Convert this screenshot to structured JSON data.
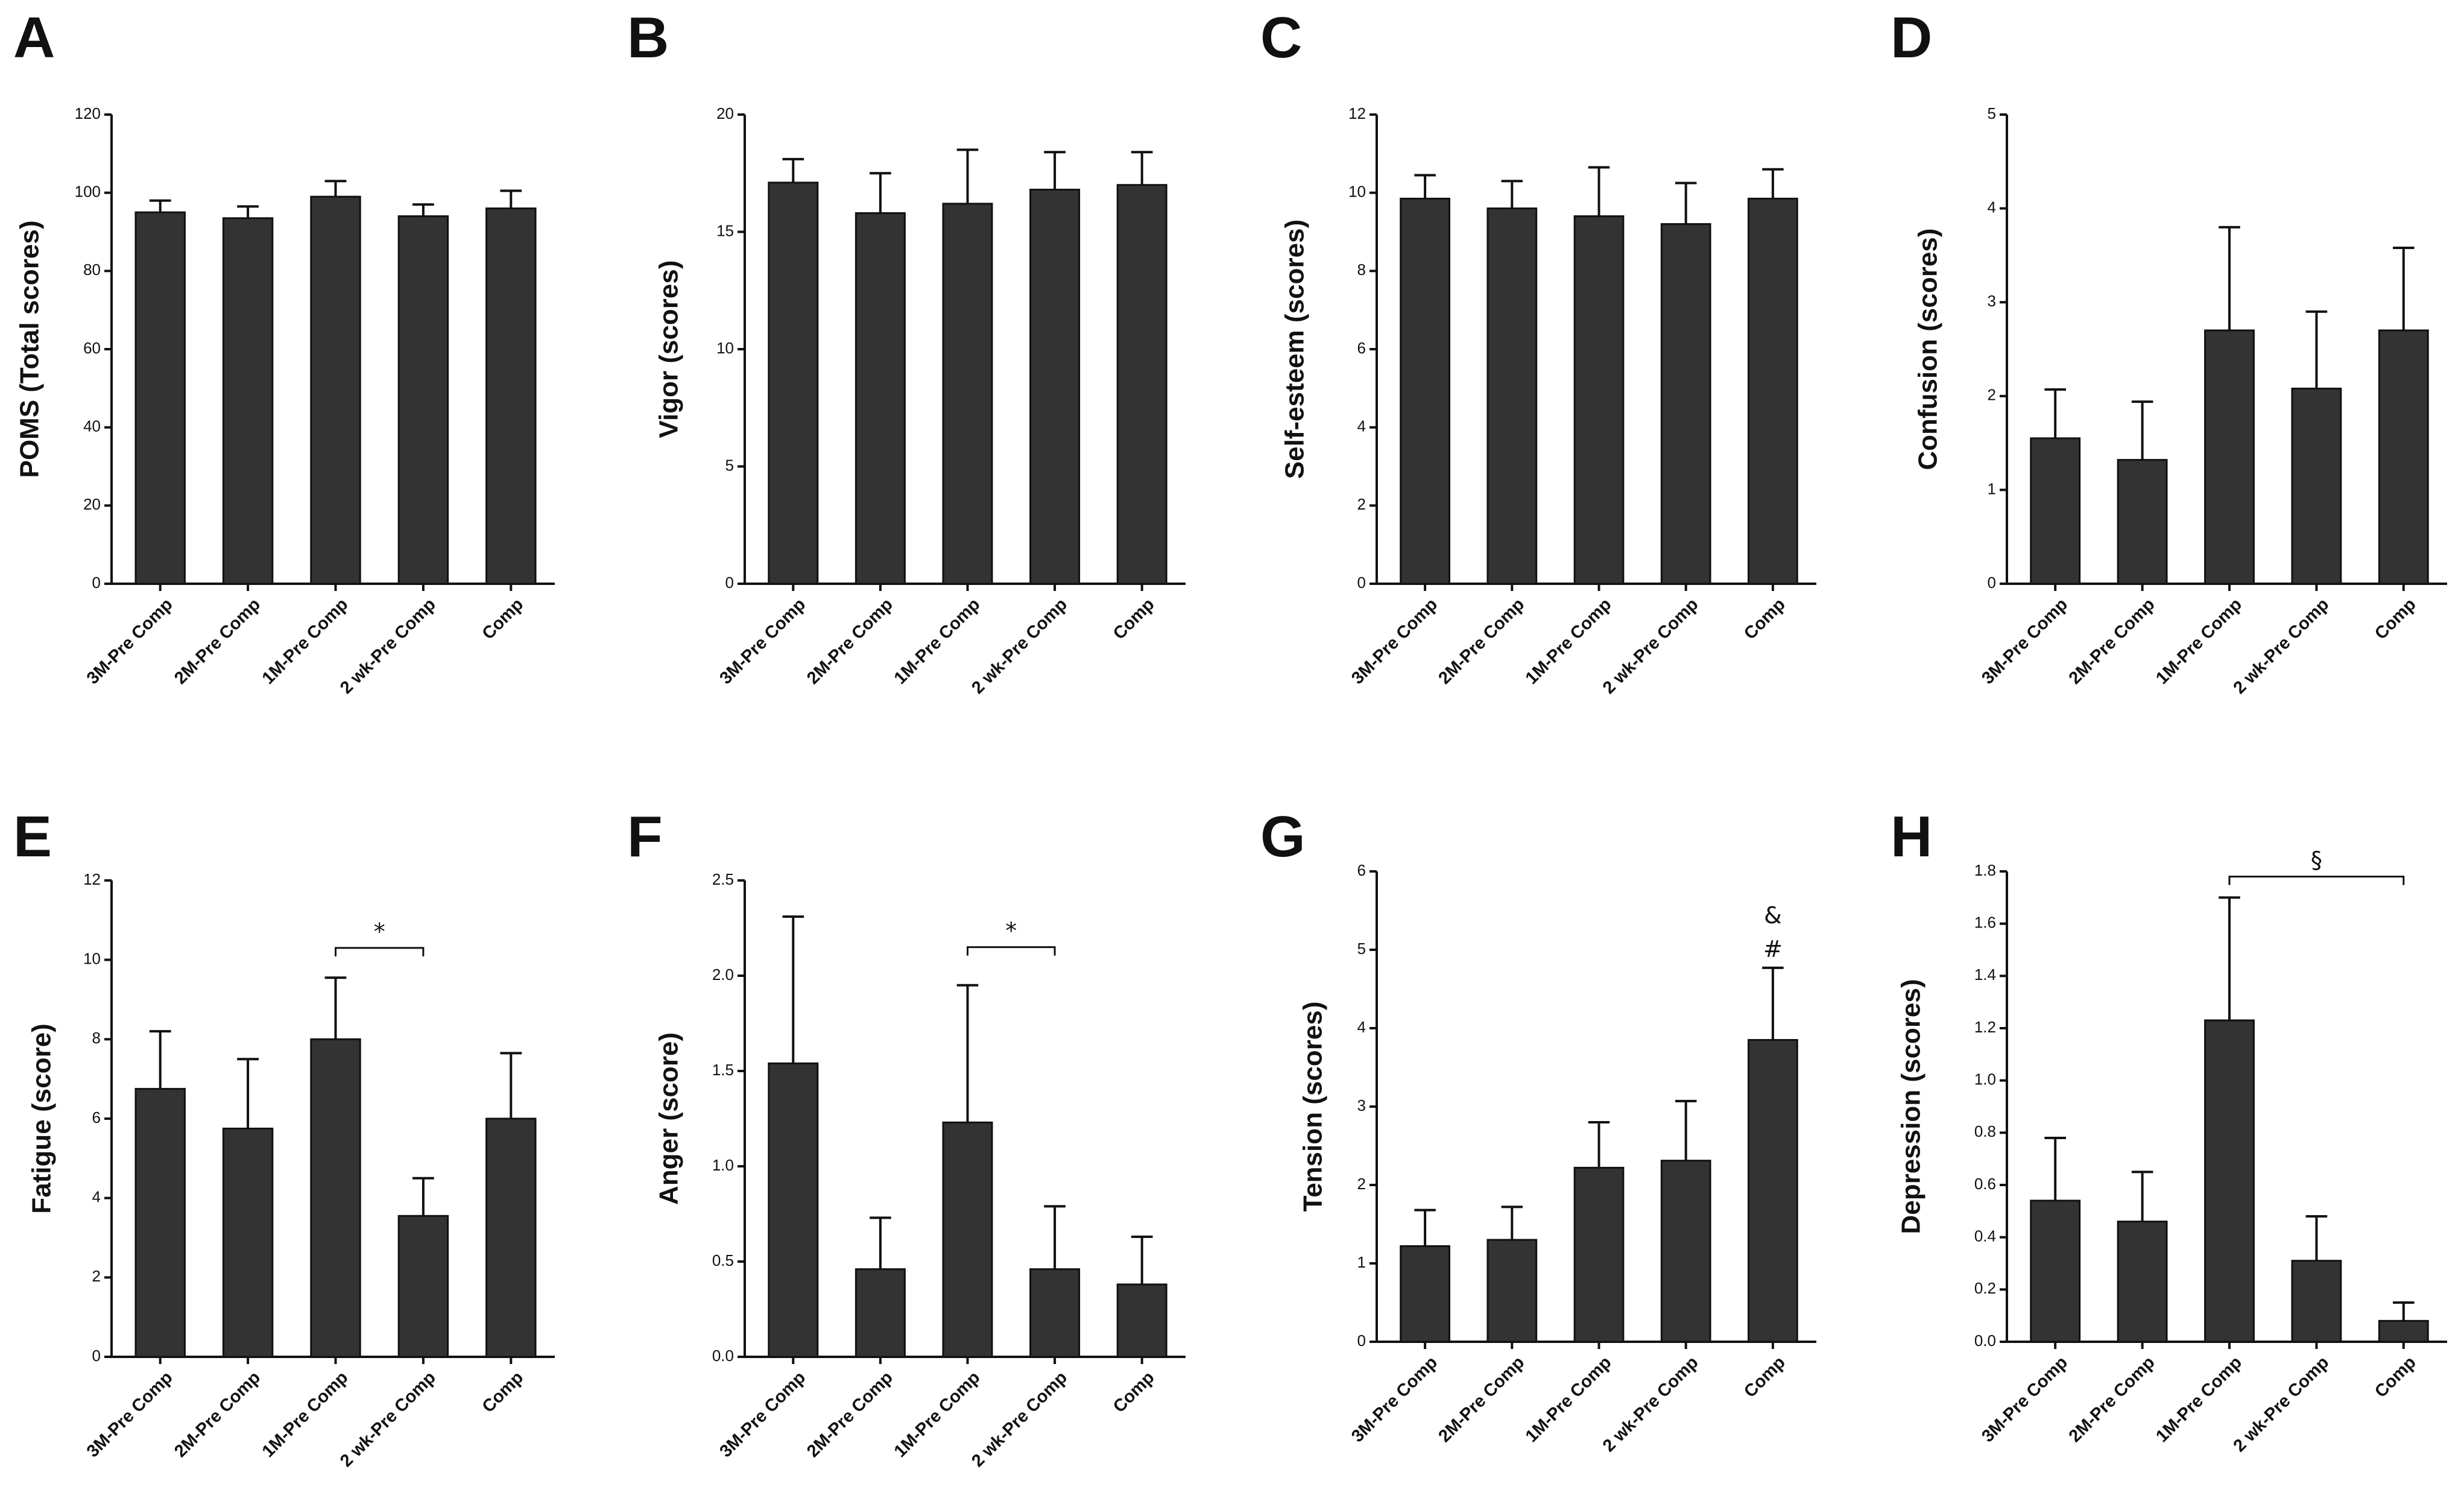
{
  "chart_data": [
    {
      "type": "bar",
      "panel": "A",
      "ylabel": "POMS (Total scores)",
      "categories": [
        "3M-Pre Comp",
        "2M-Pre Comp",
        "1M-Pre Comp",
        "2 wk-Pre Comp",
        "Comp"
      ],
      "values": [
        95,
        93.5,
        99,
        94,
        96
      ],
      "errors": [
        3,
        3,
        4,
        3,
        4.5
      ],
      "ylim": [
        0,
        120
      ],
      "yticks": [
        0,
        20,
        40,
        60,
        80,
        100,
        120
      ],
      "ytick_labels": [
        "0",
        "20",
        "40",
        "60",
        "80",
        "100",
        "120"
      ],
      "annotations": []
    },
    {
      "type": "bar",
      "panel": "B",
      "ylabel": "Vigor (scores)",
      "categories": [
        "3M-Pre Comp",
        "2M-Pre Comp",
        "1M-Pre Comp",
        "2 wk-Pre Comp",
        "Comp"
      ],
      "values": [
        17.1,
        15.8,
        16.2,
        16.8,
        17.0
      ],
      "errors": [
        1.0,
        1.7,
        2.3,
        1.6,
        1.4
      ],
      "ylim": [
        0,
        20
      ],
      "yticks": [
        0,
        5,
        10,
        15,
        20
      ],
      "ytick_labels": [
        "0",
        "5",
        "10",
        "15",
        "20"
      ],
      "annotations": []
    },
    {
      "type": "bar",
      "panel": "C",
      "ylabel": "Self-esteem (scores)",
      "categories": [
        "3M-Pre Comp",
        "2M-Pre Comp",
        "1M-Pre Comp",
        "2 wk-Pre Comp",
        "Comp"
      ],
      "values": [
        9.85,
        9.6,
        9.4,
        9.2,
        9.85
      ],
      "errors": [
        0.6,
        0.7,
        1.25,
        1.05,
        0.75
      ],
      "ylim": [
        0,
        12
      ],
      "yticks": [
        0,
        2,
        4,
        6,
        8,
        10,
        12
      ],
      "ytick_labels": [
        "0",
        "2",
        "4",
        "6",
        "8",
        "10",
        "12"
      ],
      "annotations": []
    },
    {
      "type": "bar",
      "panel": "D",
      "ylabel": "Confusion (scores)",
      "categories": [
        "3M-Pre Comp",
        "2M-Pre Comp",
        "1M-Pre Comp",
        "2 wk-Pre Comp",
        "Comp"
      ],
      "values": [
        1.55,
        1.32,
        2.7,
        2.08,
        2.7
      ],
      "errors": [
        0.52,
        0.62,
        1.1,
        0.82,
        0.88
      ],
      "ylim": [
        0,
        5
      ],
      "yticks": [
        0,
        1,
        2,
        3,
        4,
        5
      ],
      "ytick_labels": [
        "0",
        "1",
        "2",
        "3",
        "4",
        "5"
      ],
      "annotations": []
    },
    {
      "type": "bar",
      "panel": "E",
      "ylabel": "Fatigue (score)",
      "categories": [
        "3M-Pre Comp",
        "2M-Pre Comp",
        "1M-Pre Comp",
        "2 wk-Pre Comp",
        "Comp"
      ],
      "values": [
        6.75,
        5.75,
        8.0,
        3.55,
        6.0
      ],
      "errors": [
        1.45,
        1.75,
        1.55,
        0.95,
        1.65
      ],
      "ylim": [
        0,
        12
      ],
      "yticks": [
        0,
        2,
        4,
        6,
        8,
        10,
        12
      ],
      "ytick_labels": [
        "0",
        "2",
        "4",
        "6",
        "8",
        "10",
        "12"
      ],
      "annotations": [
        {
          "from": 2,
          "to": 3,
          "y": 10.3,
          "label": "*"
        }
      ]
    },
    {
      "type": "bar",
      "panel": "F",
      "ylabel": "Anger (score)",
      "categories": [
        "3M-Pre Comp",
        "2M-Pre Comp",
        "1M-Pre Comp",
        "2 wk-Pre Comp",
        "Comp"
      ],
      "values": [
        1.54,
        0.46,
        1.23,
        0.46,
        0.38
      ],
      "errors": [
        0.77,
        0.27,
        0.72,
        0.33,
        0.25
      ],
      "ylim": [
        0,
        2.5
      ],
      "yticks": [
        0,
        0.5,
        1.0,
        1.5,
        2.0,
        2.5
      ],
      "ytick_labels": [
        "0.0",
        "0.5",
        "1.0",
        "1.5",
        "2.0",
        "2.5"
      ],
      "annotations": [
        {
          "from": 2,
          "to": 3,
          "y": 2.15,
          "label": "*"
        }
      ]
    },
    {
      "type": "bar",
      "panel": "G",
      "ylabel": "Tension (scores)",
      "categories": [
        "3M-Pre Comp",
        "2M-Pre Comp",
        "1M-Pre Comp",
        "2 wk-Pre Comp",
        "Comp"
      ],
      "values": [
        1.22,
        1.3,
        2.22,
        2.31,
        3.85
      ],
      "errors": [
        0.46,
        0.42,
        0.58,
        0.76,
        0.92
      ],
      "ylim": [
        0,
        6
      ],
      "yticks": [
        0,
        1,
        2,
        3,
        4,
        5,
        6
      ],
      "ytick_labels": [
        "0",
        "1",
        "2",
        "3",
        "4",
        "5",
        "6"
      ],
      "annotations": [
        {
          "bar": 4,
          "labels": [
            "&",
            "#"
          ]
        }
      ]
    },
    {
      "type": "bar",
      "panel": "H",
      "ylabel": "Depression (scores)",
      "categories": [
        "3M-Pre Comp",
        "2M-Pre Comp",
        "1M-Pre Comp",
        "2 wk-Pre Comp",
        "Comp"
      ],
      "values": [
        0.54,
        0.46,
        1.23,
        0.31,
        0.08
      ],
      "errors": [
        0.24,
        0.19,
        0.47,
        0.17,
        0.07
      ],
      "ylim": [
        0,
        1.8
      ],
      "yticks": [
        0,
        0.2,
        0.4,
        0.6,
        0.8,
        1.0,
        1.2,
        1.4,
        1.6,
        1.8
      ],
      "ytick_labels": [
        "0.0",
        "0.2",
        "0.4",
        "0.6",
        "0.8",
        "1.0",
        "1.2",
        "1.4",
        "1.6",
        "1.8"
      ],
      "annotations": [
        {
          "from": 2,
          "to": 4,
          "y": 1.78,
          "label": "§"
        }
      ]
    }
  ]
}
